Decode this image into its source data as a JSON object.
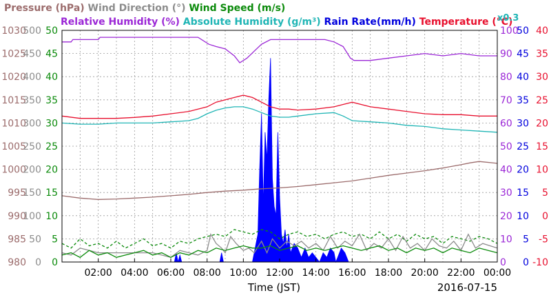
{
  "chart_data": {
    "type": "line",
    "title": [
      {
        "text": "Pressure (hPa)",
        "color": "#9b6b6b"
      },
      {
        "text": "Wind Direction (°)",
        "color": "#8c8c8c"
      },
      {
        "text": "Wind Speed (m/s)",
        "color": "#0a8a0a"
      },
      {
        "text": "Relative Humidity (%)",
        "color": "#9b27d6"
      },
      {
        "text": "Absolute Humidity (g/m³)",
        "color": "#1fb5b5"
      },
      {
        "text": "Rain Rate(mm/h)",
        "color": "#0000dd"
      },
      {
        "text": "Temperature (°C)",
        "color": "#e8102e"
      },
      {
        "text": "x0.3",
        "color": "#1fb5b5"
      }
    ],
    "xlabel": "Time (JST)",
    "date_label": "2016-07-15",
    "x_ticks": [
      "02:00",
      "04:00",
      "06:00",
      "08:00",
      "10:00",
      "12:00",
      "14:00",
      "16:00",
      "18:00",
      "20:00",
      "22:00",
      "00:00"
    ],
    "xlim": [
      0,
      24
    ],
    "grid": true,
    "axes": {
      "pressure": {
        "color": "#9b6b6b",
        "range": [
          980,
          1030
        ],
        "ticks": [
          "980",
          "985",
          "990",
          "995",
          "1000",
          "1005",
          "1010",
          "1015",
          "1020",
          "1025",
          "1030"
        ]
      },
      "wind_direction": {
        "color": "#8c8c8c",
        "range": [
          0,
          500
        ],
        "ticks": [
          "0",
          "50",
          "100",
          "150",
          "200",
          "250",
          "300",
          "350",
          "400",
          "450",
          "500"
        ]
      },
      "wind_speed": {
        "color": "#0a8a0a",
        "range": [
          0,
          50
        ],
        "ticks": [
          "0",
          "5",
          "10",
          "15",
          "20",
          "25",
          "30",
          "35",
          "40",
          "45",
          "50"
        ]
      },
      "relative_humidity": {
        "color": "#9b27d6",
        "range": [
          0,
          100
        ],
        "ticks": [
          "0",
          "10",
          "20",
          "30",
          "40",
          "50",
          "60",
          "70",
          "80",
          "90",
          "100"
        ]
      },
      "rain_rate": {
        "color": "#0000dd",
        "range": [
          0,
          50
        ],
        "ticks": [
          "0",
          "5",
          "10",
          "15",
          "20",
          "25",
          "30",
          "35",
          "40",
          "45",
          "50"
        ]
      },
      "temperature": {
        "color": "#e8102e",
        "range": [
          -10,
          40
        ],
        "ticks": [
          "-10",
          "-5",
          "0",
          "5",
          "10",
          "15",
          "20",
          "25",
          "30",
          "35",
          "40"
        ]
      }
    },
    "series": [
      {
        "name": "Relative Humidity (%)",
        "axis": "relative_humidity",
        "color": "#9b27d6",
        "x": [
          0,
          0.5,
          0.6,
          2,
          2.1,
          4,
          5,
          6,
          7.5,
          8.1,
          8.5,
          9,
          9.5,
          9.8,
          10.2,
          10.6,
          11,
          11.5,
          12,
          13,
          14,
          14.5,
          15,
          15.5,
          15.9,
          16.1,
          17,
          18,
          19,
          20,
          21,
          22,
          23,
          24
        ],
        "y": [
          95,
          95,
          96,
          96,
          97,
          97,
          97,
          97,
          97,
          94,
          93,
          92,
          89,
          86,
          88,
          91,
          94,
          96,
          96,
          96,
          96,
          96,
          95,
          93,
          88,
          87,
          87,
          88,
          89,
          90,
          89,
          90,
          89,
          89
        ]
      },
      {
        "name": "Absolute Humidity (g/m³)",
        "axis": "relative_humidity",
        "color": "#1fb5b5",
        "x": [
          0,
          1,
          2,
          3,
          4,
          5,
          6,
          7,
          7.5,
          8,
          8.5,
          9,
          9.5,
          10,
          10.5,
          11,
          11.5,
          12,
          12.5,
          13,
          14,
          15,
          15.5,
          16,
          17,
          18,
          19,
          20,
          21,
          22,
          23,
          24
        ],
        "y": [
          60,
          59.5,
          59.5,
          60,
          60,
          60,
          60.5,
          61,
          62,
          64,
          65.5,
          66.5,
          67,
          67,
          66,
          64.5,
          63,
          62.5,
          62.5,
          63,
          64,
          64.5,
          63,
          61,
          60.5,
          60,
          59,
          58.5,
          57.5,
          57,
          56.5,
          56
        ]
      },
      {
        "name": "Temperature (°C)",
        "axis": "temperature",
        "color": "#e8102e",
        "x": [
          0,
          1,
          2,
          3,
          4,
          5,
          6,
          7,
          8,
          8.5,
          9,
          9.5,
          10,
          10.5,
          11,
          11.5,
          12,
          12.5,
          13,
          14,
          15,
          15.5,
          16,
          17,
          18,
          19,
          20,
          21,
          22,
          23,
          24
        ],
        "y": [
          21.5,
          21,
          21,
          21,
          21.2,
          21.5,
          22,
          22.5,
          23.5,
          24.5,
          25,
          25.5,
          26,
          25.5,
          24.5,
          23.5,
          23,
          23,
          22.8,
          23,
          23.5,
          24,
          24.5,
          23.5,
          23,
          22.5,
          22,
          21.8,
          21.8,
          21.5,
          21.5
        ]
      },
      {
        "name": "Pressure (hPa)",
        "axis": "pressure",
        "color": "#9b6b6b",
        "x": [
          0,
          1,
          2,
          3,
          4,
          5,
          6,
          7,
          8,
          9,
          10,
          11,
          12,
          13,
          14,
          15,
          16,
          17,
          18,
          19,
          20,
          21,
          22,
          22.5,
          23,
          24
        ],
        "y": [
          994.3,
          993.8,
          993.5,
          993.6,
          993.8,
          994,
          994.3,
          994.6,
          995,
          995.3,
          995.5,
          995.8,
          996,
          996.3,
          996.7,
          997.1,
          997.5,
          998.1,
          998.7,
          999.2,
          999.7,
          1000.3,
          1001,
          1001.4,
          1001.7,
          1001.3
        ]
      },
      {
        "name": "Wind Direction (°)",
        "axis": "wind_direction",
        "color": "#8c8c8c",
        "x": [
          0,
          0.5,
          1,
          1.5,
          2,
          3,
          4,
          5,
          5.5,
          6,
          6.5,
          7,
          7.5,
          8,
          8.2,
          8.5,
          8.8,
          9,
          9.3,
          9.6,
          10,
          10.3,
          10.6,
          11,
          11.3,
          11.6,
          12,
          12.4,
          12.8,
          13.2,
          13.6,
          14,
          14.4,
          14.8,
          15.2,
          15.6,
          16,
          16.4,
          16.8,
          17.2,
          17.6,
          18,
          18.4,
          18.8,
          19.2,
          19.6,
          20,
          20.4,
          20.8,
          21.2,
          21.6,
          22,
          22.4,
          22.8,
          23.2,
          23.6,
          24
        ],
        "y": [
          20,
          15,
          30,
          25,
          20,
          20,
          20,
          20,
          15,
          10,
          25,
          20,
          15,
          25,
          60,
          40,
          30,
          20,
          55,
          40,
          25,
          30,
          20,
          45,
          20,
          50,
          30,
          45,
          35,
          45,
          30,
          40,
          25,
          55,
          30,
          45,
          35,
          60,
          25,
          40,
          30,
          50,
          25,
          55,
          30,
          40,
          25,
          50,
          35,
          30,
          45,
          25,
          60,
          30,
          40,
          35,
          30
        ]
      },
      {
        "name": "Wind Speed (m/s)",
        "axis": "wind_speed",
        "color": "#0a8a0a",
        "x": [
          0,
          0.5,
          1,
          1.5,
          2,
          2.5,
          3,
          3.5,
          4,
          4.5,
          5,
          5.5,
          6,
          6.5,
          7,
          7.5,
          8,
          8.5,
          9,
          9.5,
          10,
          10.5,
          11,
          11.5,
          12,
          12.5,
          13,
          13.5,
          14,
          14.5,
          15,
          15.5,
          16,
          16.5,
          17,
          17.5,
          18,
          18.5,
          19,
          19.5,
          20,
          20.5,
          21,
          21.5,
          22,
          22.5,
          23,
          23.5,
          24
        ],
        "y": [
          1.5,
          2,
          1,
          2.5,
          1.5,
          2,
          1,
          1.5,
          2,
          2.5,
          1.5,
          2,
          1,
          2,
          1.5,
          2.5,
          2,
          3,
          2.5,
          3,
          3.5,
          3,
          3,
          3.5,
          2.5,
          3,
          3.5,
          2.5,
          3,
          2.5,
          3,
          3.5,
          3,
          2.5,
          3,
          3.5,
          2.5,
          3,
          2,
          3,
          2.5,
          3,
          2,
          3,
          2.5,
          2,
          3,
          2.5,
          2
        ]
      },
      {
        "name": "Wind Speed max (m/s)",
        "axis": "wind_speed",
        "color": "#0a8a0a",
        "dashed": true,
        "x": [
          0,
          0.5,
          1,
          1.5,
          2,
          2.5,
          3,
          3.5,
          4,
          4.5,
          5,
          5.5,
          6,
          6.5,
          7,
          7.5,
          8,
          8.5,
          9,
          9.5,
          10,
          10.5,
          11,
          11.5,
          12,
          12.5,
          13,
          13.5,
          14,
          14.5,
          15,
          15.5,
          16,
          16.5,
          17,
          17.5,
          18,
          18.5,
          19,
          19.5,
          20,
          20.5,
          21,
          21.5,
          22,
          22.5,
          23,
          23.5,
          24
        ],
        "y": [
          4,
          3,
          5,
          3.5,
          4,
          3,
          4.5,
          3,
          4,
          5,
          3.5,
          4,
          3,
          4.5,
          4,
          5,
          5.5,
          6,
          5.5,
          7,
          6.5,
          6,
          7,
          6.5,
          5,
          6,
          6.5,
          5.5,
          6,
          5,
          6,
          6.5,
          5.5,
          6,
          5,
          6.5,
          5,
          6,
          4.5,
          6,
          5,
          5.5,
          4,
          5.5,
          5,
          4.5,
          5.5,
          5,
          4
        ]
      },
      {
        "name": "Rain Rate(mm/h)",
        "axis": "rain_rate",
        "color": "#0000ff",
        "fill": true,
        "x": [
          0,
          6.2,
          6.3,
          6.4,
          6.5,
          6.6,
          8.7,
          8.8,
          8.9,
          9.0,
          10.5,
          10.6,
          10.8,
          10.9,
          11.0,
          11.1,
          11.2,
          11.3,
          11.4,
          11.5,
          11.6,
          11.7,
          11.8,
          11.9,
          12.0,
          12.1,
          12.2,
          12.3,
          12.4,
          12.5,
          12.6,
          12.8,
          13.0,
          13.2,
          13.4,
          13.6,
          13.8,
          14.0,
          14.2,
          14.4,
          14.6,
          14.8,
          15.0,
          15.1,
          15.2,
          15.4,
          15.6,
          15.8,
          24
        ],
        "y": [
          0,
          0,
          2,
          0,
          1.5,
          0,
          0,
          2,
          0,
          0,
          0,
          2,
          6,
          20,
          32,
          12,
          28,
          22,
          35,
          44,
          18,
          12,
          10,
          28,
          14,
          6,
          4,
          7,
          3,
          6,
          2,
          4,
          3,
          1,
          3,
          1,
          2,
          1,
          0,
          2,
          1,
          3,
          2,
          0,
          1,
          3,
          2,
          0,
          0
        ]
      }
    ]
  }
}
